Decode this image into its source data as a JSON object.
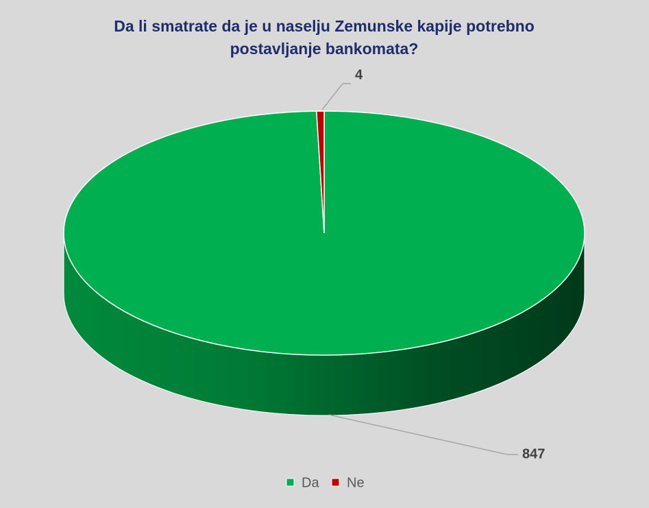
{
  "chart_data": {
    "type": "pie3d",
    "title": "Da li smatrate da je u naselju Zemunske kapije potrebno postavljanje bankomata?",
    "categories": [
      "Da",
      "Ne"
    ],
    "values": [
      847,
      4
    ],
    "colors": [
      "#00b050",
      "#c00000"
    ],
    "legend": "bottom"
  }
}
